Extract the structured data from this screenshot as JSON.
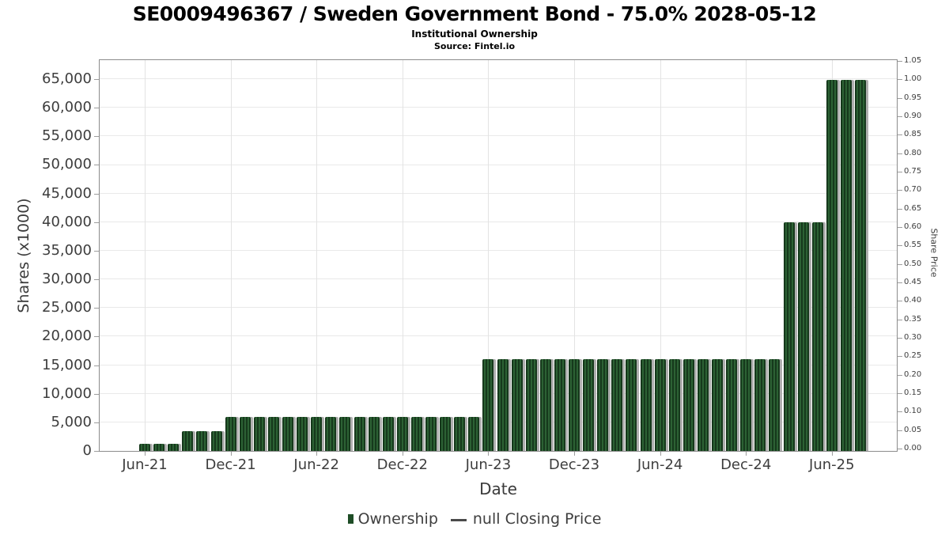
{
  "header": {
    "title": "SE0009496367 / Sweden Government Bond - 75.0% 2028-05-12",
    "subtitle": "Institutional Ownership",
    "source": "Source: Fintel.io"
  },
  "axes": {
    "left_title": "Shares (x1000)",
    "right_title": "Share Price",
    "x_title": "Date",
    "left_tick_labels": [
      "0",
      "5,000",
      "10,000",
      "15,000",
      "20,000",
      "25,000",
      "30,000",
      "35,000",
      "40,000",
      "45,000",
      "50,000",
      "55,000",
      "60,000",
      "65,000"
    ],
    "right_tick_labels": [
      "0.00",
      "0.05",
      "0.10",
      "0.15",
      "0.20",
      "0.25",
      "0.30",
      "0.35",
      "0.40",
      "0.45",
      "0.50",
      "0.55",
      "0.60",
      "0.65",
      "0.70",
      "0.75",
      "0.80",
      "0.85",
      "0.90",
      "0.95",
      "1.00",
      "1.05"
    ],
    "x_tick_labels": [
      "Jun-21",
      "Dec-21",
      "Jun-22",
      "Dec-22",
      "Jun-23",
      "Dec-23",
      "Jun-24",
      "Dec-24",
      "Jun-25"
    ]
  },
  "legend": {
    "ownership_label": "Ownership",
    "price_label": "null Closing Price",
    "ownership_color": "#1e4d26",
    "price_line_color": "#4a4a4a"
  },
  "chart_data": {
    "type": "bar",
    "title": "SE0009496367 / Sweden Government Bond - 75.0% 2028-05-12",
    "subtitle": "Institutional Ownership",
    "source": "Source: Fintel.io",
    "xlabel": "Date",
    "ylabel": "Shares (x1000)",
    "ylabel_right": "Share Price",
    "ylim_left": [
      0,
      68600
    ],
    "ylim_right": [
      0,
      1.05
    ],
    "grid": true,
    "legend_position": "bottom",
    "x_tick_every": 6,
    "categories": [
      "Jun-21",
      "Jul-21",
      "Aug-21",
      "Sep-21",
      "Oct-21",
      "Nov-21",
      "Dec-21",
      "Jan-22",
      "Feb-22",
      "Mar-22",
      "Apr-22",
      "May-22",
      "Jun-22",
      "Jul-22",
      "Aug-22",
      "Sep-22",
      "Oct-22",
      "Nov-22",
      "Dec-22",
      "Jan-23",
      "Feb-23",
      "Mar-23",
      "Apr-23",
      "May-23",
      "Jun-23",
      "Jul-23",
      "Aug-23",
      "Sep-23",
      "Oct-23",
      "Nov-23",
      "Dec-23",
      "Jan-24",
      "Feb-24",
      "Mar-24",
      "Apr-24",
      "May-24",
      "Jun-24",
      "Jul-24",
      "Aug-24",
      "Sep-24",
      "Oct-24",
      "Nov-24",
      "Dec-24",
      "Jan-25",
      "Feb-25",
      "Mar-25",
      "Apr-25",
      "May-25",
      "Jun-25",
      "Jul-25",
      "Aug-25"
    ],
    "series": [
      {
        "name": "Ownership",
        "type": "bar",
        "color": "#1e4d26",
        "values": [
          1250,
          1250,
          1250,
          3500,
          3500,
          3500,
          5900,
          5900,
          5900,
          5900,
          5900,
          5900,
          5900,
          5900,
          5900,
          5900,
          5900,
          5900,
          5900,
          5900,
          5900,
          5900,
          5900,
          5900,
          16100,
          16100,
          16100,
          16100,
          16100,
          16100,
          16100,
          16100,
          16100,
          16100,
          16100,
          16100,
          16100,
          16100,
          16100,
          16100,
          16100,
          16100,
          16100,
          16100,
          16100,
          40000,
          40000,
          40000,
          64900,
          64900,
          64900
        ]
      },
      {
        "name": "null Closing Price",
        "type": "line",
        "color": "#4a4a4a",
        "values": []
      }
    ]
  }
}
